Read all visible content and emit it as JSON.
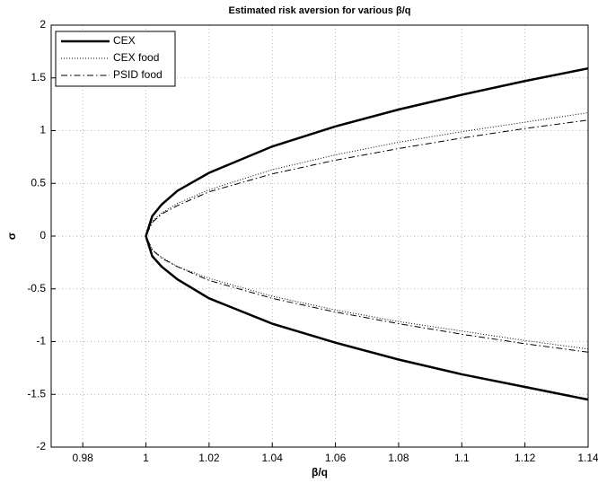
{
  "chart_data": {
    "type": "line",
    "title": "Estimated risk aversion for various β/q",
    "x_label": "β/q",
    "y_label": "σ",
    "xlim": [
      0.97,
      1.14
    ],
    "ylim": [
      -2,
      2
    ],
    "xticks": [
      0.98,
      1,
      1.02,
      1.04,
      1.06,
      1.08,
      1.1,
      1.12,
      1.14
    ],
    "yticks": [
      -2,
      -1.5,
      -1,
      -0.5,
      0,
      0.5,
      1,
      1.5,
      2
    ],
    "grid": true,
    "legend": "upper left",
    "series": [
      {
        "name": "CEX",
        "color": "#000000",
        "width": 2.5,
        "dash": "solid",
        "x": [
          1.14,
          1.12,
          1.1,
          1.08,
          1.06,
          1.04,
          1.02,
          1.01,
          1.005,
          1.002,
          1.0,
          1.002,
          1.005,
          1.01,
          1.02,
          1.04,
          1.06,
          1.08,
          1.1,
          1.12,
          1.14
        ],
        "values": [
          -1.55,
          -1.43,
          -1.31,
          -1.17,
          -1.01,
          -0.83,
          -0.59,
          -0.41,
          -0.29,
          -0.19,
          0,
          0.19,
          0.3,
          0.43,
          0.6,
          0.85,
          1.04,
          1.2,
          1.34,
          1.47,
          1.59
        ]
      },
      {
        "name": "CEX food",
        "color": "#000000",
        "width": 1,
        "dash": "dotted",
        "x": [
          1.14,
          1.12,
          1.1,
          1.08,
          1.06,
          1.04,
          1.02,
          1.01,
          1.005,
          1.002,
          1.0,
          1.002,
          1.005,
          1.01,
          1.02,
          1.04,
          1.06,
          1.08,
          1.1,
          1.12,
          1.14
        ],
        "values": [
          -1.07,
          -0.99,
          -0.9,
          -0.81,
          -0.7,
          -0.57,
          -0.4,
          -0.29,
          -0.2,
          -0.13,
          0,
          0.14,
          0.22,
          0.31,
          0.44,
          0.63,
          0.77,
          0.89,
          0.99,
          1.08,
          1.17
        ]
      },
      {
        "name": "PSID food",
        "color": "#000000",
        "width": 1,
        "dash": "dashdot",
        "x": [
          1.14,
          1.12,
          1.1,
          1.08,
          1.06,
          1.04,
          1.02,
          1.01,
          1.005,
          1.002,
          1.0,
          1.002,
          1.005,
          1.01,
          1.02,
          1.04,
          1.06,
          1.08,
          1.1,
          1.12,
          1.14
        ],
        "values": [
          -1.1,
          -1.02,
          -0.93,
          -0.83,
          -0.72,
          -0.59,
          -0.42,
          -0.29,
          -0.21,
          -0.13,
          0,
          0.13,
          0.21,
          0.29,
          0.42,
          0.59,
          0.72,
          0.83,
          0.93,
          1.02,
          1.1
        ]
      }
    ]
  }
}
